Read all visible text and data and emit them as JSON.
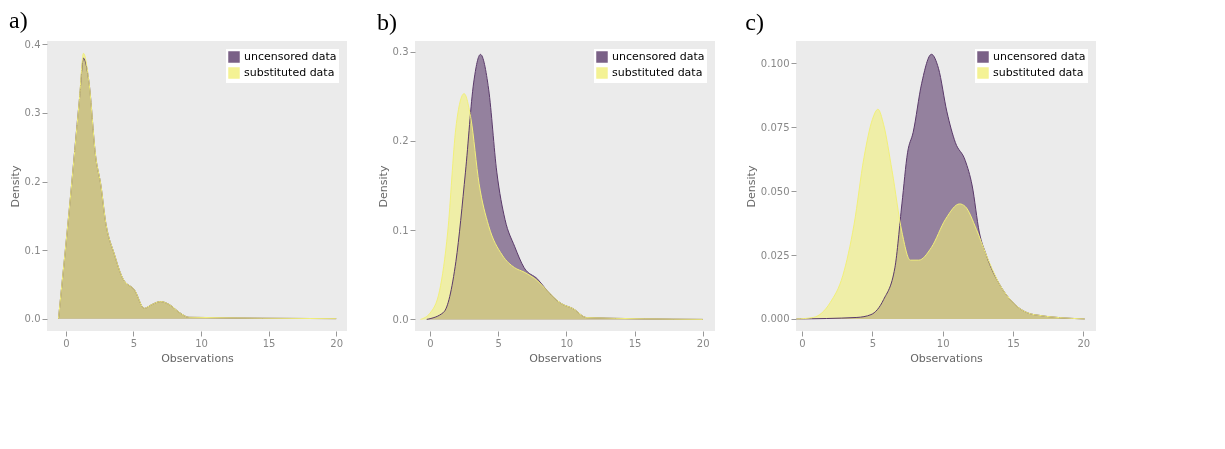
{
  "chart_data": [
    {
      "type": "area",
      "title": "a)",
      "xlabel": "Observations",
      "ylabel": "Density",
      "xlim": [
        -1.4,
        20.8
      ],
      "xticks": [
        0,
        5,
        10,
        15,
        20
      ],
      "ylim": [
        -0.018,
        0.405
      ],
      "yticks": [
        {
          "value": 0,
          "label": "0.0"
        },
        {
          "value": 0.1,
          "label": "0.1"
        },
        {
          "value": 0.2,
          "label": "0.2"
        },
        {
          "value": 0.3,
          "label": "0.3"
        },
        {
          "value": 0.4,
          "label": "0.4"
        }
      ],
      "legend": "top right",
      "grid": false,
      "series": [
        {
          "name": "uncensored data",
          "color": "#5a3a6a",
          "x": [
            -0.55,
            0.3,
            1.0,
            1.3,
            1.7,
            2.2,
            2.6,
            2.9,
            3.6,
            4.2,
            5.1,
            5.8,
            6.3,
            7.0,
            7.7,
            8.4,
            9.1,
            20
          ],
          "values": [
            0,
            0.17,
            0.32,
            0.38,
            0.346,
            0.237,
            0.193,
            0.146,
            0.093,
            0.059,
            0.041,
            0.015,
            0.02,
            0.025,
            0.02,
            0.009,
            0.002,
            0
          ]
        },
        {
          "name": "substituted data",
          "color": "#f2f07a",
          "x": [
            -0.55,
            0.3,
            1.0,
            1.3,
            1.7,
            2.2,
            2.6,
            2.9,
            3.6,
            4.2,
            5.1,
            5.8,
            6.3,
            7.0,
            7.7,
            8.4,
            9.1,
            20
          ],
          "values": [
            0,
            0.17,
            0.32,
            0.387,
            0.346,
            0.237,
            0.193,
            0.146,
            0.093,
            0.059,
            0.041,
            0.015,
            0.02,
            0.025,
            0.02,
            0.009,
            0.002,
            0
          ]
        }
      ]
    },
    {
      "type": "area",
      "title": "b)",
      "xlabel": "Observations",
      "ylabel": "Density",
      "xlim": [
        -1.1,
        20.9
      ],
      "xticks": [
        0,
        5,
        10,
        15,
        20
      ],
      "ylim": [
        -0.013,
        0.312
      ],
      "yticks": [
        {
          "value": 0,
          "label": "0.0"
        },
        {
          "value": 0.1,
          "label": "0.1"
        },
        {
          "value": 0.2,
          "label": "0.2"
        },
        {
          "value": 0.3,
          "label": "0.3"
        }
      ],
      "legend": "top right",
      "grid": false,
      "series": [
        {
          "name": "uncensored data",
          "color": "#5a3a6a",
          "x": [
            -0.24,
            1.0,
            1.9,
            2.6,
            3.2,
            3.7,
            4.3,
            4.9,
            5.5,
            6.2,
            6.9,
            7.9,
            8.6,
            9.6,
            10.5,
            11.5,
            20
          ],
          "values": [
            0,
            0.008,
            0.065,
            0.165,
            0.265,
            0.297,
            0.258,
            0.165,
            0.112,
            0.082,
            0.058,
            0.045,
            0.032,
            0.018,
            0.012,
            0.002,
            0
          ]
        },
        {
          "name": "substituted data",
          "color": "#f2f07a",
          "x": [
            -0.7,
            0,
            0.7,
            1.3,
            1.9,
            2.5,
            3.0,
            3.6,
            4.3,
            5.3,
            6.2,
            6.9,
            7.9,
            8.6,
            9.6,
            10.5,
            11.5,
            20
          ],
          "values": [
            0,
            0.007,
            0.032,
            0.098,
            0.215,
            0.253,
            0.225,
            0.152,
            0.105,
            0.072,
            0.058,
            0.053,
            0.043,
            0.032,
            0.018,
            0.012,
            0.002,
            0
          ]
        }
      ]
    },
    {
      "type": "area",
      "title": "c)",
      "xlabel": "Observations",
      "ylabel": "Density",
      "xlim": [
        -0.43,
        20.9
      ],
      "xticks": [
        0,
        5,
        10,
        15,
        20
      ],
      "ylim": [
        -0.0047,
        0.1087
      ],
      "yticks": [
        {
          "value": 0,
          "label": "0.000"
        },
        {
          "value": 0.025,
          "label": "0.025"
        },
        {
          "value": 0.05,
          "label": "0.050"
        },
        {
          "value": 0.075,
          "label": "0.075"
        },
        {
          "value": 0.1,
          "label": "0.100"
        }
      ],
      "legend": "top right",
      "grid": false,
      "series": [
        {
          "name": "uncensored data",
          "color": "#5a3a6a",
          "x": [
            -0.4,
            3.9,
            4.9,
            5.8,
            6.6,
            7.1,
            7.5,
            7.9,
            8.5,
            9.2,
            9.7,
            10.3,
            10.9,
            11.6,
            12.1,
            12.6,
            13.1,
            14.1,
            15.0,
            16.5,
            20.1
          ],
          "values": [
            0,
            0.0006,
            0.0017,
            0.0076,
            0.02,
            0.045,
            0.065,
            0.073,
            0.092,
            0.1035,
            0.098,
            0.081,
            0.069,
            0.062,
            0.052,
            0.034,
            0.025,
            0.013,
            0.0064,
            0.0017,
            0
          ]
        },
        {
          "name": "substituted data",
          "color": "#f2f07a",
          "x": [
            -0.4,
            0.8,
            2.0,
            2.9,
            3.7,
            4.4,
            5.0,
            5.4,
            5.8,
            6.4,
            7.1,
            7.7,
            8.3,
            9.2,
            10.2,
            11.2,
            11.6,
            12.4,
            13.1,
            14.1,
            15.0,
            16.5,
            20.1
          ],
          "values": [
            0,
            0.0006,
            0.0064,
            0.017,
            0.037,
            0.063,
            0.078,
            0.082,
            0.076,
            0.058,
            0.034,
            0.023,
            0.023,
            0.028,
            0.039,
            0.045,
            0.044,
            0.035,
            0.025,
            0.013,
            0.0064,
            0.0017,
            0
          ]
        }
      ]
    }
  ]
}
